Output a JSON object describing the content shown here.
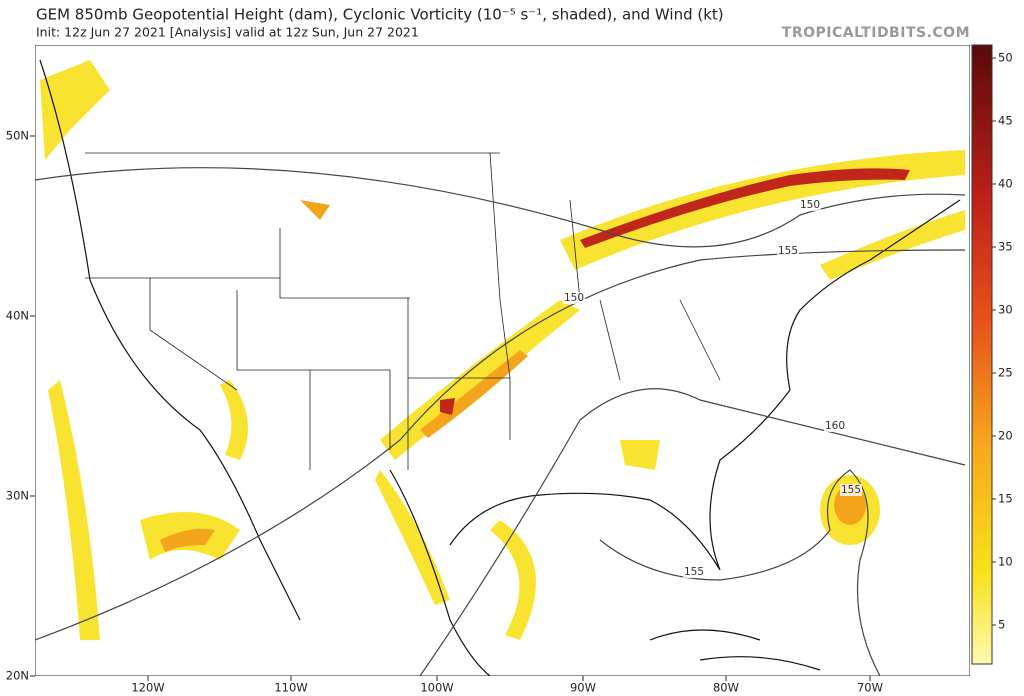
{
  "header": {
    "title": "GEM 850mb Geopotential Height (dam), Cyclonic Vorticity (10⁻⁵ s⁻¹, shaded), and Wind (kt)",
    "subtitle": "Init: 12z Jun 27 2021   [Analysis]   valid at 12z Sun, Jun 27 2021",
    "site": "TROPICALTIDBITS.COM"
  },
  "colorbar": {
    "ticks": [
      5,
      10,
      15,
      20,
      25,
      30,
      35,
      40,
      45,
      50
    ]
  },
  "longitude_labels": [
    "120W",
    "110W",
    "100W",
    "90W",
    "80W",
    "70W"
  ],
  "latitude_labels": [
    "50N",
    "40N",
    "30N",
    "20N"
  ],
  "contour_labels": [
    "150",
    "155",
    "150",
    "160",
    "155",
    "155"
  ]
}
